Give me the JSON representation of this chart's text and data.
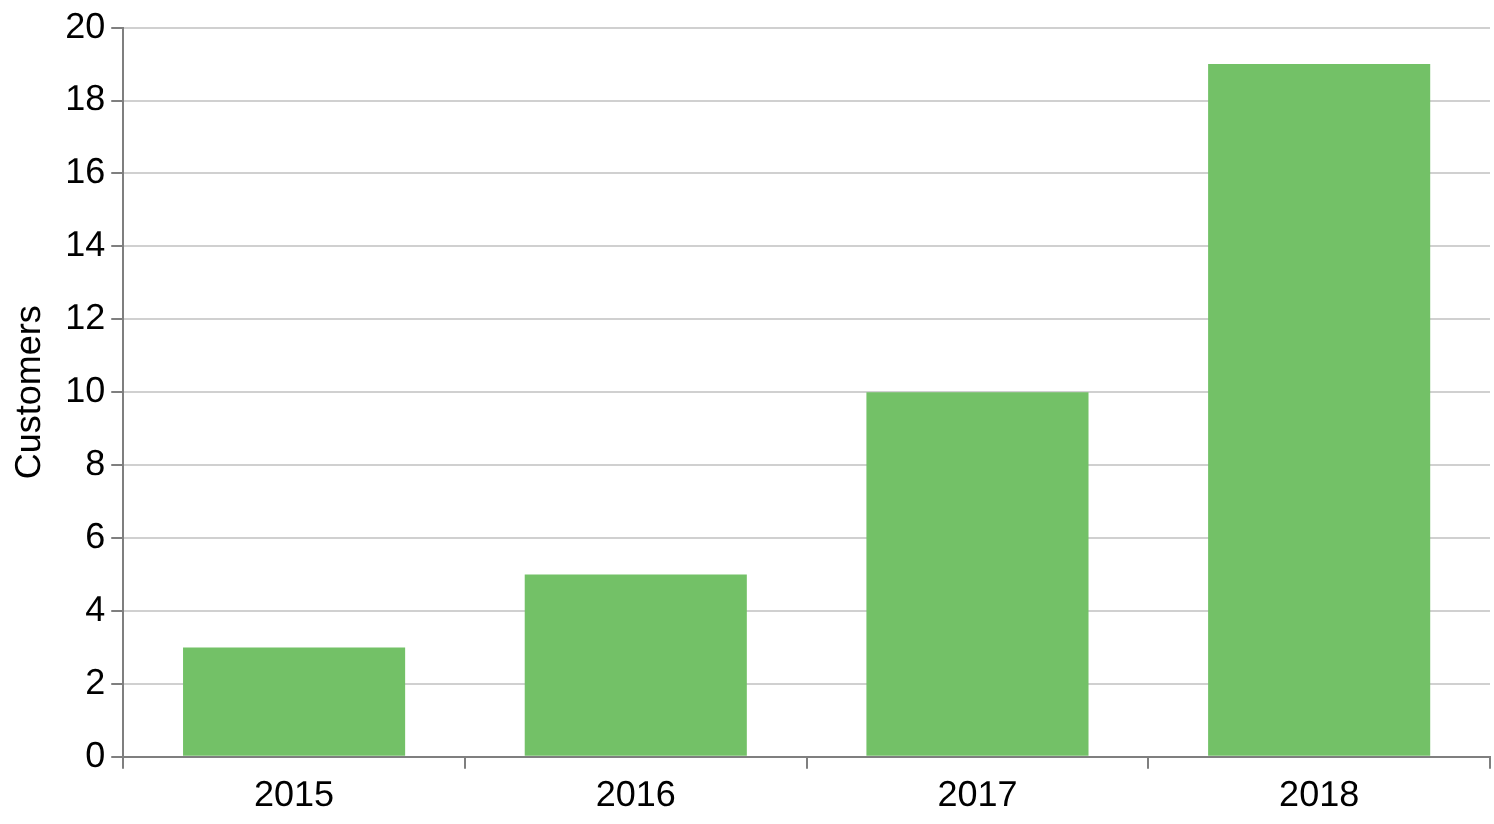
{
  "chart_data": {
    "type": "bar",
    "ylabel": "Customers",
    "categories": [
      "2015",
      "2016",
      "2017",
      "2018"
    ],
    "values": [
      3,
      5,
      10,
      19
    ],
    "color": "#73c167",
    "ylim": [
      0,
      20
    ],
    "yticks": [
      0,
      2,
      4,
      6,
      8,
      10,
      12,
      14,
      16,
      18,
      20
    ],
    "grid": "y",
    "legend": false
  }
}
